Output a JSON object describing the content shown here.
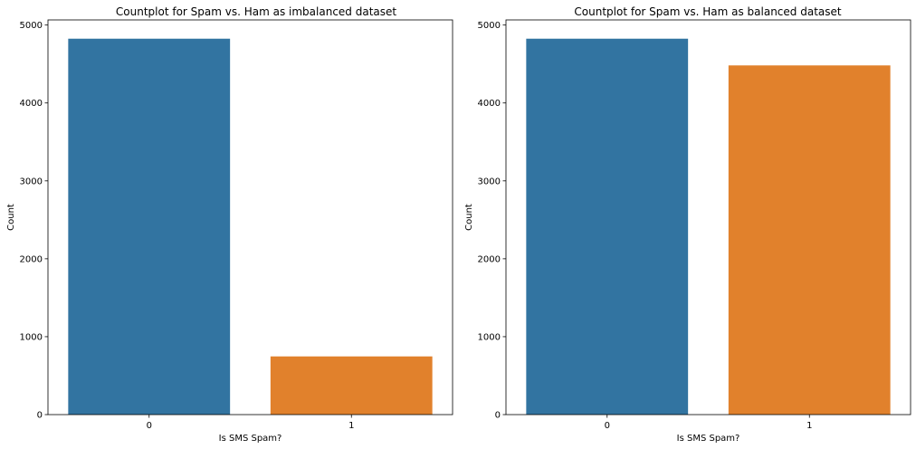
{
  "colors": {
    "series_0": "#3274a1",
    "series_1": "#e1812c"
  },
  "chart_data": [
    {
      "type": "bar",
      "title": "Countplot for Spam vs. Ham as imbalanced dataset",
      "xlabel": "Is SMS Spam?",
      "ylabel": "Count",
      "categories": [
        "0",
        "1"
      ],
      "values": [
        4825,
        747
      ],
      "ylim": [
        0,
        5066
      ],
      "yticks": [
        0,
        1000,
        2000,
        3000,
        4000,
        5000
      ],
      "grid": false
    },
    {
      "type": "bar",
      "title": "Countplot for Spam vs. Ham as balanced dataset",
      "xlabel": "Is SMS Spam?",
      "ylabel": "Count",
      "categories": [
        "0",
        "1"
      ],
      "values": [
        4825,
        4482
      ],
      "ylim": [
        0,
        5066
      ],
      "yticks": [
        0,
        1000,
        2000,
        3000,
        4000,
        5000
      ],
      "grid": false
    }
  ]
}
